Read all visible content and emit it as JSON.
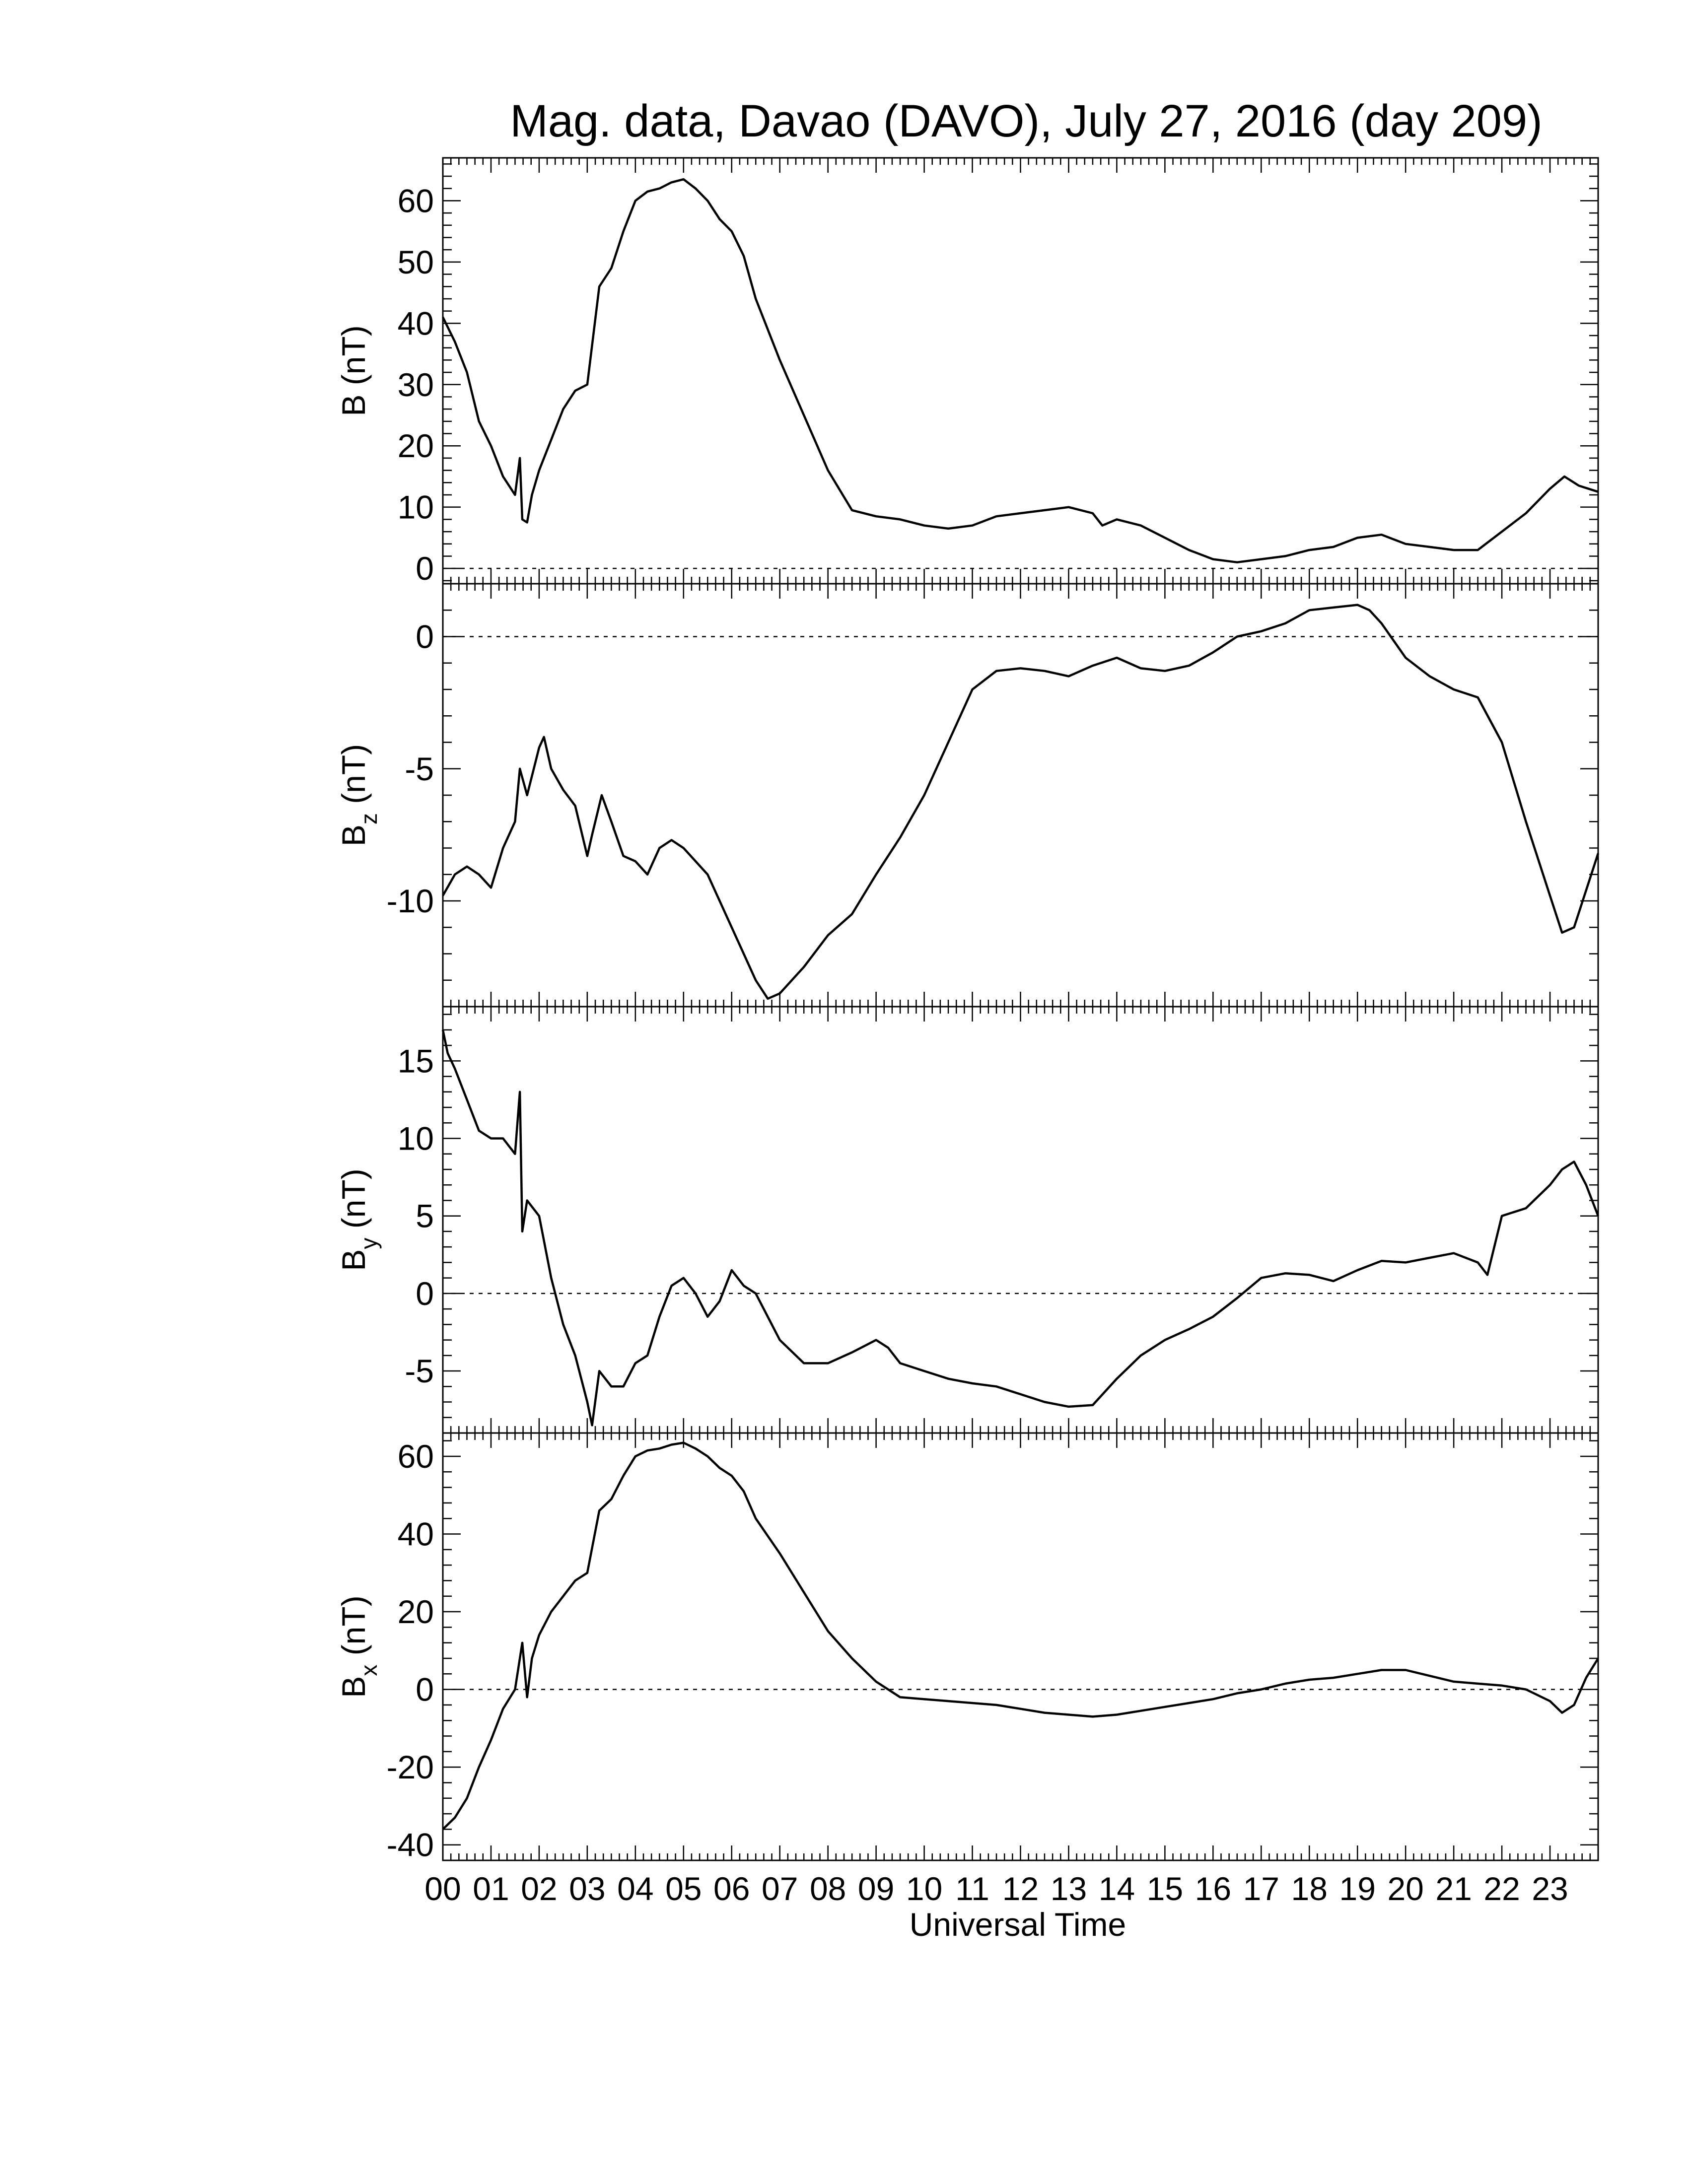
{
  "title": "Mag. data, Davao (DAVO), July 27, 2016 (day 209)",
  "xlabel": "Universal Time",
  "chart_data": [
    {
      "type": "line",
      "panel": "B",
      "ylabel_main": "B",
      "ylabel_sub": "",
      "ylabel_unit": " (nT)",
      "ylim": [
        -2.5,
        67
      ],
      "yticks": [
        0,
        10,
        20,
        30,
        40,
        50,
        60
      ],
      "ytick_labels": [
        "0",
        "10",
        "20",
        "30",
        "40",
        "50",
        "60"
      ],
      "zero_line": true,
      "x": [
        0,
        0.25,
        0.5,
        0.75,
        1.0,
        1.25,
        1.5,
        1.6,
        1.65,
        1.75,
        1.85,
        2.0,
        2.25,
        2.5,
        2.75,
        3.0,
        3.25,
        3.5,
        3.75,
        4.0,
        4.25,
        4.5,
        4.75,
        5.0,
        5.25,
        5.5,
        5.75,
        6.0,
        6.25,
        6.5,
        7.0,
        7.5,
        8.0,
        8.5,
        9.0,
        9.5,
        10.0,
        10.5,
        11.0,
        11.5,
        12.0,
        12.5,
        13.0,
        13.5,
        13.7,
        14.0,
        14.5,
        15.0,
        15.5,
        16.0,
        16.5,
        17.0,
        17.5,
        18.0,
        18.5,
        19.0,
        19.5,
        20.0,
        20.5,
        21.0,
        21.5,
        22.0,
        22.5,
        23.0,
        23.3,
        23.6,
        24.0
      ],
      "y": [
        41,
        37,
        32,
        24,
        20,
        15,
        12,
        18,
        8,
        7.5,
        12,
        16,
        21,
        26,
        29,
        30,
        46,
        49,
        55,
        60,
        61.5,
        62,
        63,
        63.5,
        62,
        60,
        57,
        55,
        51,
        44,
        34,
        25,
        16,
        9.5,
        8.5,
        8,
        7,
        6.5,
        7,
        8.5,
        9,
        9.5,
        10,
        9,
        7,
        8,
        7,
        5,
        3,
        1.5,
        1,
        1.5,
        2,
        3,
        3.5,
        5,
        5.5,
        4,
        3.5,
        3,
        3,
        6,
        9,
        13,
        15,
        13.5,
        12.5
      ]
    },
    {
      "type": "line",
      "panel": "Bz",
      "ylabel_main": "B",
      "ylabel_sub": "z",
      "ylabel_unit": " (nT)",
      "ylim": [
        -14,
        2
      ],
      "yticks": [
        -10,
        -5,
        0
      ],
      "ytick_labels": [
        "-10",
        "-5",
        "0"
      ],
      "zero_line": true,
      "x": [
        0,
        0.25,
        0.5,
        0.75,
        1.0,
        1.25,
        1.5,
        1.6,
        1.75,
        2.0,
        2.1,
        2.25,
        2.5,
        2.75,
        3.0,
        3.1,
        3.3,
        3.5,
        3.75,
        4.0,
        4.25,
        4.5,
        4.75,
        5.0,
        5.5,
        6.0,
        6.5,
        6.75,
        7.0,
        7.5,
        8.0,
        8.5,
        9.0,
        9.5,
        10.0,
        10.5,
        11.0,
        11.5,
        12.0,
        12.5,
        13.0,
        13.5,
        14.0,
        14.5,
        15.0,
        15.5,
        16.0,
        16.5,
        17.0,
        17.5,
        18.0,
        18.5,
        19.0,
        19.25,
        19.5,
        20.0,
        20.5,
        21.0,
        21.5,
        22.0,
        22.5,
        23.0,
        23.25,
        23.5,
        24.0
      ],
      "y": [
        -9.8,
        -9,
        -8.7,
        -9,
        -9.5,
        -8,
        -7,
        -5,
        -6,
        -4.2,
        -3.8,
        -5,
        -5.8,
        -6.4,
        -8.3,
        -7.5,
        -6,
        -7,
        -8.3,
        -8.5,
        -9,
        -8,
        -7.7,
        -8,
        -9,
        -11,
        -13,
        -13.7,
        -13.5,
        -12.5,
        -11.3,
        -10.5,
        -9,
        -7.6,
        -6,
        -4,
        -2,
        -1.3,
        -1.2,
        -1.3,
        -1.5,
        -1.1,
        -0.8,
        -1.2,
        -1.3,
        -1.1,
        -0.6,
        0,
        0.2,
        0.5,
        1,
        1.1,
        1.2,
        1.0,
        0.5,
        -0.8,
        -1.5,
        -2,
        -2.3,
        -4,
        -7,
        -9.8,
        -11.2,
        -11,
        -8.2
      ]
    },
    {
      "type": "line",
      "panel": "By",
      "ylabel_main": "B",
      "ylabel_sub": "y",
      "ylabel_unit": " (nT)",
      "ylim": [
        -9,
        18.5
      ],
      "yticks": [
        -5,
        0,
        5,
        10,
        15
      ],
      "ytick_labels": [
        "-5",
        "0",
        "5",
        "10",
        "15"
      ],
      "zero_line": true,
      "x": [
        0,
        0.1,
        0.25,
        0.5,
        0.75,
        1.0,
        1.25,
        1.5,
        1.6,
        1.65,
        1.75,
        2.0,
        2.25,
        2.5,
        2.75,
        3.0,
        3.1,
        3.25,
        3.5,
        3.75,
        4.0,
        4.25,
        4.5,
        4.75,
        5.0,
        5.25,
        5.5,
        5.75,
        6.0,
        6.25,
        6.5,
        7.0,
        7.5,
        8.0,
        8.5,
        9.0,
        9.25,
        9.5,
        10.0,
        10.5,
        11.0,
        11.5,
        12.0,
        12.5,
        13.0,
        13.5,
        14.0,
        14.5,
        15.0,
        15.5,
        16.0,
        16.5,
        17.0,
        17.5,
        18.0,
        18.5,
        19.0,
        19.5,
        20.0,
        20.5,
        21.0,
        21.5,
        21.7,
        22.0,
        22.5,
        23.0,
        23.25,
        23.5,
        23.75,
        24.0
      ],
      "y": [
        17,
        15.5,
        14.5,
        12.5,
        10.5,
        10,
        10,
        9,
        13,
        4,
        6,
        5,
        1,
        -2,
        -4,
        -7,
        -8.5,
        -5,
        -6,
        -6,
        -4.5,
        -4,
        -1.5,
        0.5,
        1,
        0,
        -1.5,
        -0.5,
        1.5,
        0.5,
        0,
        -3,
        -4.5,
        -4.5,
        -3.8,
        -3,
        -3.5,
        -4.5,
        -5,
        -5.5,
        -5.8,
        -6,
        -6.5,
        -7,
        -7.3,
        -7.2,
        -5.5,
        -4,
        -3,
        -2.3,
        -1.5,
        -0.3,
        1,
        1.3,
        1.2,
        0.8,
        1.5,
        2.1,
        2,
        2.3,
        2.6,
        2,
        1.2,
        5,
        5.5,
        7,
        8,
        8.5,
        7,
        5
      ]
    },
    {
      "type": "line",
      "panel": "Bx",
      "ylabel_main": "B",
      "ylabel_sub": "x",
      "ylabel_unit": " (nT)",
      "ylim": [
        -44,
        66
      ],
      "yticks": [
        -40,
        -20,
        0,
        20,
        40,
        60
      ],
      "ytick_labels": [
        "-40",
        "-20",
        "0",
        "20",
        "40",
        "60"
      ],
      "zero_line": true,
      "x": [
        0,
        0.25,
        0.5,
        0.75,
        1.0,
        1.25,
        1.5,
        1.65,
        1.75,
        1.85,
        2.0,
        2.25,
        2.5,
        2.75,
        3.0,
        3.25,
        3.5,
        3.75,
        4.0,
        4.25,
        4.5,
        4.75,
        5.0,
        5.25,
        5.5,
        5.75,
        6.0,
        6.25,
        6.5,
        7.0,
        7.5,
        8.0,
        8.5,
        9.0,
        9.5,
        10.0,
        10.5,
        11.0,
        11.5,
        12.0,
        12.5,
        13.0,
        13.5,
        14.0,
        14.5,
        15.0,
        15.5,
        16.0,
        16.5,
        17.0,
        17.5,
        18.0,
        18.5,
        19.0,
        19.5,
        20.0,
        20.5,
        21.0,
        21.5,
        22.0,
        22.5,
        23.0,
        23.25,
        23.5,
        23.75,
        24.0
      ],
      "y": [
        -36,
        -33,
        -28,
        -20,
        -13,
        -5,
        0,
        12,
        -2,
        8,
        14,
        20,
        24,
        28,
        30,
        46,
        49,
        55,
        60,
        61.5,
        62,
        63,
        63.5,
        62,
        60,
        57,
        55,
        51,
        44,
        35,
        25,
        15,
        8,
        2,
        -2,
        -2.5,
        -3,
        -3.5,
        -4,
        -5,
        -6,
        -6.5,
        -7,
        -6.5,
        -5.5,
        -4.5,
        -3.5,
        -2.5,
        -1,
        0,
        1.5,
        2.5,
        3,
        4,
        5,
        5,
        3.5,
        2,
        1.5,
        1,
        0,
        -3,
        -6,
        -4,
        3,
        8
      ]
    }
  ],
  "xaxis": {
    "range": [
      0,
      24
    ],
    "tick_labels": [
      "00",
      "01",
      "02",
      "03",
      "04",
      "05",
      "06",
      "07",
      "08",
      "09",
      "10",
      "11",
      "12",
      "13",
      "14",
      "15",
      "16",
      "17",
      "18",
      "19",
      "20",
      "21",
      "22",
      "23"
    ]
  }
}
